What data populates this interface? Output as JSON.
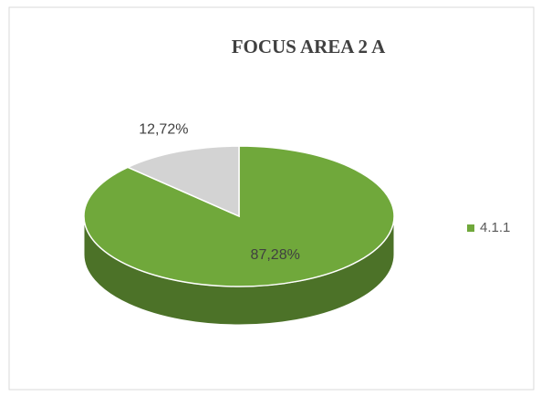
{
  "chart_data": {
    "type": "pie",
    "title": "FOCUS AREA 2 A",
    "categories": [
      "4.1.1",
      null
    ],
    "values": [
      87.28,
      12.72
    ],
    "value_labels": [
      "87,28%",
      "12,72%"
    ],
    "colors": [
      "#70a83b",
      "#d3d3d3"
    ],
    "legend": "right"
  }
}
